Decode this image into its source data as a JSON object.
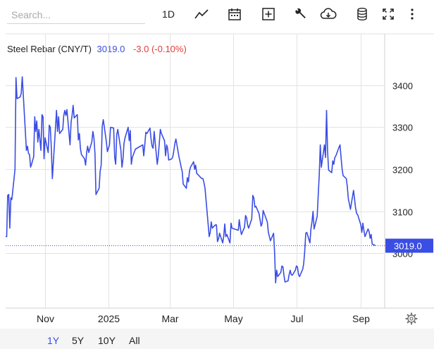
{
  "search": {
    "placeholder": "Search..."
  },
  "toolbar": {
    "interval_label": "1D",
    "icons": [
      "line-chart-icon",
      "calendar-icon",
      "add-box-icon",
      "wrench-icon",
      "cloud-download-icon",
      "database-icon",
      "fullscreen-icon",
      "more-vertical-icon"
    ]
  },
  "header": {
    "instrument": "Steel Rebar (CNY/T)",
    "last_price": "3019.0",
    "change": "-3.0 (-0.10%)"
  },
  "colors": {
    "series": "#3a4de4",
    "negative": "#e33b3b",
    "grid": "#e3e3e3",
    "badge": "#3a4de4"
  },
  "range_selector": {
    "options": [
      "1Y",
      "5Y",
      "10Y",
      "All"
    ],
    "selected": "1Y"
  },
  "chart_data": {
    "type": "line",
    "title": "",
    "xlabel": "",
    "ylabel": "",
    "ylim": [
      2870,
      3455
    ],
    "yticks": [
      3400,
      3300,
      3200,
      3100,
      3000
    ],
    "ytick_labels": [
      "3400",
      "3300",
      "3200",
      "3100",
      "3000"
    ],
    "xlim": [
      "2024-09-24",
      "2025-09-24"
    ],
    "xticks": [
      "2024-11-01",
      "2025-01-01",
      "2025-03-01",
      "2025-05-01",
      "2025-07-01",
      "2025-09-01"
    ],
    "xtick_labels": [
      "Nov",
      "2025",
      "Mar",
      "May",
      "Jul",
      "Sep"
    ],
    "grid": true,
    "last_value_badge": "3019.0",
    "series": [
      {
        "name": "",
        "points": [
          [
            "2024-09-24",
            3040
          ],
          [
            "2024-09-25",
            3040
          ],
          [
            "2024-09-26",
            3138
          ],
          [
            "2024-09-27",
            3140
          ],
          [
            "2024-09-28",
            3060
          ],
          [
            "2024-09-29",
            3132
          ],
          [
            "2024-09-30",
            3128
          ],
          [
            "2024-10-03",
            3200
          ],
          [
            "2024-10-04",
            3418
          ],
          [
            "2024-10-05",
            3368
          ],
          [
            "2024-10-08",
            3372
          ],
          [
            "2024-10-09",
            3380
          ],
          [
            "2024-10-10",
            3420
          ],
          [
            "2024-10-11",
            3375
          ],
          [
            "2024-10-14",
            3245
          ],
          [
            "2024-10-15",
            3255
          ],
          [
            "2024-10-16",
            3238
          ],
          [
            "2024-10-17",
            3235
          ],
          [
            "2024-10-18",
            3205
          ],
          [
            "2024-10-19",
            3212
          ],
          [
            "2024-10-21",
            3230
          ],
          [
            "2024-10-22",
            3325
          ],
          [
            "2024-10-23",
            3290
          ],
          [
            "2024-10-24",
            3315
          ],
          [
            "2024-10-25",
            3265
          ],
          [
            "2024-10-26",
            3295
          ],
          [
            "2024-10-28",
            3245
          ],
          [
            "2024-10-29",
            3330
          ],
          [
            "2024-10-30",
            3325
          ],
          [
            "2024-10-31",
            3225
          ],
          [
            "2024-11-01",
            3275
          ],
          [
            "2024-11-04",
            3240
          ],
          [
            "2024-11-05",
            3305
          ],
          [
            "2024-11-06",
            3300
          ],
          [
            "2024-11-07",
            3248
          ],
          [
            "2024-11-08",
            3178
          ],
          [
            "2024-11-11",
            3300
          ],
          [
            "2024-11-12",
            3340
          ],
          [
            "2024-11-13",
            3290
          ],
          [
            "2024-11-14",
            3325
          ],
          [
            "2024-11-15",
            3285
          ],
          [
            "2024-11-18",
            3295
          ],
          [
            "2024-11-19",
            3328
          ],
          [
            "2024-11-20",
            3340
          ],
          [
            "2024-11-21",
            3328
          ],
          [
            "2024-11-22",
            3342
          ],
          [
            "2024-11-25",
            3258
          ],
          [
            "2024-11-26",
            3312
          ],
          [
            "2024-11-27",
            3328
          ],
          [
            "2024-11-28",
            3352
          ],
          [
            "2024-11-29",
            3322
          ],
          [
            "2024-12-02",
            3330
          ],
          [
            "2024-12-03",
            3270
          ],
          [
            "2024-12-04",
            3285
          ],
          [
            "2024-12-05",
            3250
          ],
          [
            "2024-12-06",
            3235
          ],
          [
            "2024-12-09",
            3225
          ],
          [
            "2024-12-10",
            3210
          ],
          [
            "2024-12-11",
            3240
          ],
          [
            "2024-12-12",
            3255
          ],
          [
            "2024-12-13",
            3240
          ],
          [
            "2024-12-16",
            3265
          ],
          [
            "2024-12-17",
            3290
          ],
          [
            "2024-12-18",
            3275
          ],
          [
            "2024-12-19",
            3238
          ],
          [
            "2024-12-20",
            3140
          ],
          [
            "2024-12-23",
            3155
          ],
          [
            "2024-12-24",
            3195
          ],
          [
            "2024-12-25",
            3210
          ],
          [
            "2024-12-26",
            3302
          ],
          [
            "2024-12-27",
            3318
          ],
          [
            "2024-12-30",
            3265
          ],
          [
            "2024-12-31",
            3242
          ],
          [
            "2025-01-02",
            3258
          ],
          [
            "2025-01-03",
            3300
          ],
          [
            "2025-01-06",
            3298
          ],
          [
            "2025-01-07",
            3228
          ],
          [
            "2025-01-08",
            3212
          ],
          [
            "2025-01-09",
            3282
          ],
          [
            "2025-01-10",
            3295
          ],
          [
            "2025-01-13",
            3245
          ],
          [
            "2025-01-14",
            3205
          ],
          [
            "2025-01-15",
            3225
          ],
          [
            "2025-01-16",
            3262
          ],
          [
            "2025-01-17",
            3275
          ],
          [
            "2025-01-20",
            3300
          ],
          [
            "2025-01-21",
            3268
          ],
          [
            "2025-01-22",
            3292
          ],
          [
            "2025-01-23",
            3212
          ],
          [
            "2025-01-24",
            3228
          ],
          [
            "2025-01-27",
            3248
          ],
          [
            "2025-02-03",
            3258
          ],
          [
            "2025-02-04",
            3232
          ],
          [
            "2025-02-05",
            3258
          ],
          [
            "2025-02-06",
            3288
          ],
          [
            "2025-02-07",
            3285
          ],
          [
            "2025-02-10",
            3298
          ],
          [
            "2025-02-11",
            3272
          ],
          [
            "2025-02-12",
            3255
          ],
          [
            "2025-02-13",
            3250
          ],
          [
            "2025-02-14",
            3290
          ],
          [
            "2025-02-17",
            3212
          ],
          [
            "2025-02-18",
            3232
          ],
          [
            "2025-02-19",
            3262
          ],
          [
            "2025-02-20",
            3295
          ],
          [
            "2025-02-21",
            3285
          ],
          [
            "2025-02-24",
            3268
          ],
          [
            "2025-02-25",
            3232
          ],
          [
            "2025-02-26",
            3258
          ],
          [
            "2025-02-27",
            3250
          ],
          [
            "2025-02-28",
            3222
          ],
          [
            "2025-03-03",
            3225
          ],
          [
            "2025-03-04",
            3230
          ],
          [
            "2025-03-05",
            3245
          ],
          [
            "2025-03-06",
            3262
          ],
          [
            "2025-03-07",
            3272
          ],
          [
            "2025-03-10",
            3228
          ],
          [
            "2025-03-11",
            3218
          ],
          [
            "2025-03-12",
            3205
          ],
          [
            "2025-03-13",
            3195
          ],
          [
            "2025-03-14",
            3165
          ],
          [
            "2025-03-17",
            3155
          ],
          [
            "2025-03-18",
            3180
          ],
          [
            "2025-03-19",
            3170
          ],
          [
            "2025-03-20",
            3195
          ],
          [
            "2025-03-21",
            3205
          ],
          [
            "2025-03-24",
            3218
          ],
          [
            "2025-03-25",
            3200
          ],
          [
            "2025-03-26",
            3210
          ],
          [
            "2025-03-27",
            3190
          ],
          [
            "2025-03-28",
            3188
          ],
          [
            "2025-03-31",
            3180
          ],
          [
            "2025-04-01",
            3178
          ],
          [
            "2025-04-02",
            3178
          ],
          [
            "2025-04-03",
            3168
          ],
          [
            "2025-04-04",
            3155
          ],
          [
            "2025-04-07",
            3070
          ],
          [
            "2025-04-08",
            3040
          ],
          [
            "2025-04-09",
            3050
          ],
          [
            "2025-04-10",
            3075
          ],
          [
            "2025-04-11",
            3060
          ],
          [
            "2025-04-14",
            3068
          ],
          [
            "2025-04-15",
            3068
          ],
          [
            "2025-04-16",
            3028
          ],
          [
            "2025-04-17",
            3035
          ],
          [
            "2025-04-18",
            3048
          ],
          [
            "2025-04-21",
            3025
          ],
          [
            "2025-04-22",
            3040
          ],
          [
            "2025-04-23",
            3070
          ],
          [
            "2025-04-24",
            3040
          ],
          [
            "2025-04-25",
            3045
          ],
          [
            "2025-04-28",
            3025
          ],
          [
            "2025-04-29",
            3072
          ],
          [
            "2025-04-30",
            3060
          ],
          [
            "2025-05-06",
            3055
          ],
          [
            "2025-05-07",
            3080
          ],
          [
            "2025-05-08",
            3060
          ],
          [
            "2025-05-09",
            3045
          ],
          [
            "2025-05-12",
            3062
          ],
          [
            "2025-05-13",
            3090
          ],
          [
            "2025-05-14",
            3085
          ],
          [
            "2025-05-15",
            3068
          ],
          [
            "2025-05-16",
            3060
          ],
          [
            "2025-05-19",
            3082
          ],
          [
            "2025-05-20",
            3138
          ],
          [
            "2025-05-21",
            3132
          ],
          [
            "2025-05-22",
            3110
          ],
          [
            "2025-05-23",
            3112
          ],
          [
            "2025-05-26",
            3095
          ],
          [
            "2025-05-27",
            3080
          ],
          [
            "2025-05-28",
            3065
          ],
          [
            "2025-05-29",
            3072
          ],
          [
            "2025-05-30",
            3102
          ],
          [
            "2025-06-03",
            3075
          ],
          [
            "2025-06-04",
            3050
          ],
          [
            "2025-06-05",
            3040
          ],
          [
            "2025-06-06",
            3030
          ],
          [
            "2025-06-09",
            3048
          ],
          [
            "2025-06-10",
            3000
          ],
          [
            "2025-06-11",
            2930
          ],
          [
            "2025-06-12",
            2960
          ],
          [
            "2025-06-13",
            2945
          ],
          [
            "2025-06-16",
            2955
          ],
          [
            "2025-06-17",
            2970
          ],
          [
            "2025-06-18",
            2968
          ],
          [
            "2025-06-19",
            2948
          ],
          [
            "2025-06-20",
            2932
          ],
          [
            "2025-06-23",
            2935
          ],
          [
            "2025-06-24",
            2950
          ],
          [
            "2025-06-25",
            2960
          ],
          [
            "2025-06-26",
            2950
          ],
          [
            "2025-06-27",
            2948
          ],
          [
            "2025-06-30",
            2960
          ],
          [
            "2025-07-01",
            2970
          ],
          [
            "2025-07-02",
            2968
          ],
          [
            "2025-07-03",
            2950
          ],
          [
            "2025-07-04",
            2945
          ],
          [
            "2025-07-07",
            2962
          ],
          [
            "2025-07-08",
            2975
          ],
          [
            "2025-07-09",
            3005
          ],
          [
            "2025-07-10",
            3048
          ],
          [
            "2025-07-11",
            3050
          ],
          [
            "2025-07-14",
            3025
          ],
          [
            "2025-07-15",
            3058
          ],
          [
            "2025-07-16",
            3075
          ],
          [
            "2025-07-17",
            3100
          ],
          [
            "2025-07-18",
            3058
          ],
          [
            "2025-07-21",
            3088
          ],
          [
            "2025-07-22",
            3140
          ],
          [
            "2025-07-23",
            3185
          ],
          [
            "2025-07-24",
            3258
          ],
          [
            "2025-07-25",
            3205
          ],
          [
            "2025-07-28",
            3258
          ],
          [
            "2025-07-29",
            3228
          ],
          [
            "2025-07-30",
            3340
          ],
          [
            "2025-07-31",
            3245
          ],
          [
            "2025-08-01",
            3198
          ],
          [
            "2025-08-04",
            3192
          ],
          [
            "2025-08-05",
            3220
          ],
          [
            "2025-08-06",
            3212
          ],
          [
            "2025-08-07",
            3228
          ],
          [
            "2025-08-08",
            3232
          ],
          [
            "2025-08-11",
            3252
          ],
          [
            "2025-08-12",
            3258
          ],
          [
            "2025-08-13",
            3228
          ],
          [
            "2025-08-14",
            3200
          ],
          [
            "2025-08-15",
            3185
          ],
          [
            "2025-08-18",
            3178
          ],
          [
            "2025-08-19",
            3160
          ],
          [
            "2025-08-20",
            3130
          ],
          [
            "2025-08-21",
            3118
          ],
          [
            "2025-08-22",
            3105
          ],
          [
            "2025-08-25",
            3150
          ],
          [
            "2025-08-26",
            3128
          ],
          [
            "2025-08-27",
            3108
          ],
          [
            "2025-08-28",
            3095
          ],
          [
            "2025-08-29",
            3092
          ],
          [
            "2025-09-01",
            3068
          ],
          [
            "2025-09-02",
            3050
          ],
          [
            "2025-09-03",
            3072
          ],
          [
            "2025-09-04",
            3055
          ],
          [
            "2025-09-05",
            3040
          ],
          [
            "2025-09-08",
            3058
          ],
          [
            "2025-09-09",
            3052
          ],
          [
            "2025-09-10",
            3036
          ],
          [
            "2025-09-11",
            3045
          ],
          [
            "2025-09-12",
            3022
          ],
          [
            "2025-09-15",
            3019
          ]
        ]
      }
    ]
  }
}
